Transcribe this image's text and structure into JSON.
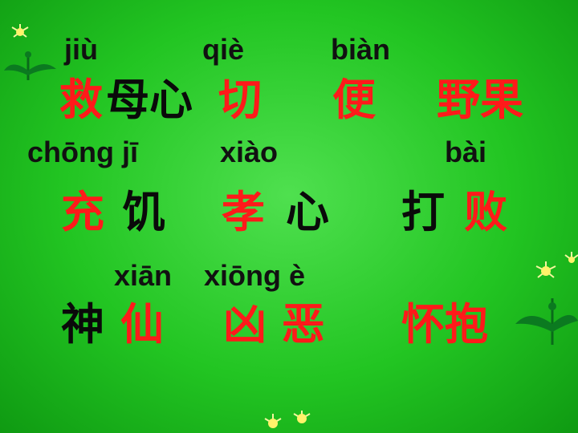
{
  "pinyin": {
    "jiu": "jiù",
    "qie": "qiè",
    "bian": "biàn",
    "chong_ji": "chōng jī",
    "xiao": "xiào",
    "bai": "bài",
    "xian": "xiān",
    "xiong_e": "xiōng è"
  },
  "words": {
    "jiu": "救",
    "mu_xin": "母心",
    "qie": "切",
    "bian": "便",
    "ye_guo": "野果",
    "chong": "充",
    "ji": "饥",
    "xiao": "孝",
    "xin": "心",
    "da": "打",
    "bai": "败",
    "shen": "神",
    "xian": "仙",
    "xiong_e": "凶 恶",
    "huai_bao": "怀抱"
  },
  "colors": {
    "target_char": "#ff1a1a",
    "context_char": "#0a0a0a",
    "background": "#22c522"
  },
  "decorations": [
    "dandelion-icon",
    "dandelion-icon",
    "dandelion-icon",
    "dandelion-icon"
  ]
}
